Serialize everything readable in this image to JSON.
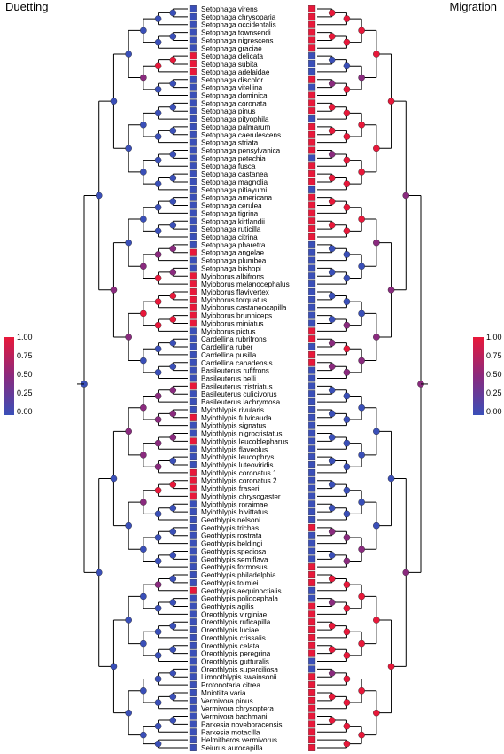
{
  "titles": {
    "left": "Duetting",
    "right": "Migration"
  },
  "legend": {
    "ticks": [
      "1.00",
      "0.75",
      "0.50",
      "0.25",
      "0.00"
    ],
    "colors": {
      "high": "#e8183a",
      "mid": "#8a2a7e",
      "low": "#3a4fb8"
    }
  },
  "species": [
    {
      "name": "Setophaga virens",
      "duet": 0,
      "mig": 1
    },
    {
      "name": "Setophaga chrysoparia",
      "duet": 0,
      "mig": 1
    },
    {
      "name": "Setophaga occidentalis",
      "duet": 0,
      "mig": 1
    },
    {
      "name": "Setophaga townsendi",
      "duet": 0,
      "mig": 1
    },
    {
      "name": "Setophaga nigrescens",
      "duet": 0,
      "mig": 1
    },
    {
      "name": "Setophaga graciae",
      "duet": 0,
      "mig": 1
    },
    {
      "name": "Setophaga delicata",
      "duet": 1,
      "mig": 0
    },
    {
      "name": "Setophaga subita",
      "duet": 1,
      "mig": 0
    },
    {
      "name": "Setophaga adelaidae",
      "duet": 1,
      "mig": 0
    },
    {
      "name": "Setophaga discolor",
      "duet": 0,
      "mig": 1
    },
    {
      "name": "Setophaga vitellina",
      "duet": 0,
      "mig": 0
    },
    {
      "name": "Setophaga dominica",
      "duet": 0,
      "mig": 1
    },
    {
      "name": "Setophaga coronata",
      "duet": 0,
      "mig": 1
    },
    {
      "name": "Setophaga pinus",
      "duet": 0,
      "mig": 1
    },
    {
      "name": "Setophaga pityophila",
      "duet": 0,
      "mig": 0
    },
    {
      "name": "Setophaga palmarum",
      "duet": 0,
      "mig": 1
    },
    {
      "name": "Setophaga caerulescens",
      "duet": 0,
      "mig": 1
    },
    {
      "name": "Setophaga striata",
      "duet": 0,
      "mig": 1
    },
    {
      "name": "Setophaga pensylvanica",
      "duet": 0,
      "mig": 1
    },
    {
      "name": "Setophaga petechia",
      "duet": 0,
      "mig": 0
    },
    {
      "name": "Setophaga fusca",
      "duet": 0,
      "mig": 1
    },
    {
      "name": "Setophaga castanea",
      "duet": 0,
      "mig": 1
    },
    {
      "name": "Setophaga magnolia",
      "duet": 0,
      "mig": 1
    },
    {
      "name": "Setophaga pitiayumi",
      "duet": 0,
      "mig": 0
    },
    {
      "name": "Setophaga americana",
      "duet": 0,
      "mig": 1
    },
    {
      "name": "Setophaga cerulea",
      "duet": 0,
      "mig": 1
    },
    {
      "name": "Setophaga tigrina",
      "duet": 0,
      "mig": 1
    },
    {
      "name": "Setophaga kirtlandii",
      "duet": 0,
      "mig": 1
    },
    {
      "name": "Setophaga ruticilla",
      "duet": 0,
      "mig": 1
    },
    {
      "name": "Setophaga citrina",
      "duet": 0,
      "mig": 1
    },
    {
      "name": "Setophaga pharetra",
      "duet": 0,
      "mig": 0
    },
    {
      "name": "Setophaga angelae",
      "duet": 1,
      "mig": 0
    },
    {
      "name": "Setophaga plumbea",
      "duet": 0,
      "mig": 0
    },
    {
      "name": "Setophaga bishopi",
      "duet": 0,
      "mig": 0
    },
    {
      "name": "Myioborus albifrons",
      "duet": 1,
      "mig": 0
    },
    {
      "name": "Myioborus melanocephalus",
      "duet": 1,
      "mig": 0
    },
    {
      "name": "Myioborus flavivertex",
      "duet": 1,
      "mig": 0
    },
    {
      "name": "Myioborus torquatus",
      "duet": 1,
      "mig": 0
    },
    {
      "name": "Myioborus castaneocapilla",
      "duet": 1,
      "mig": 0
    },
    {
      "name": "Myioborus brunniceps",
      "duet": 1,
      "mig": 0
    },
    {
      "name": "Myioborus miniatus",
      "duet": 1,
      "mig": 0
    },
    {
      "name": "Myioborus pictus",
      "duet": 0,
      "mig": 1
    },
    {
      "name": "Cardellina rubrifrons",
      "duet": 0,
      "mig": 1
    },
    {
      "name": "Cardellina ruber",
      "duet": 0,
      "mig": 0
    },
    {
      "name": "Cardellina pusilla",
      "duet": 0,
      "mig": 1
    },
    {
      "name": "Cardellina canadensis",
      "duet": 0,
      "mig": 1
    },
    {
      "name": "Basileuterus rufifrons",
      "duet": 0,
      "mig": 0
    },
    {
      "name": "Basileuterus belli",
      "duet": 0,
      "mig": 0
    },
    {
      "name": "Basileuterus tristriatus",
      "duet": 1,
      "mig": 0
    },
    {
      "name": "Basileuterus culicivorus",
      "duet": 0,
      "mig": 0
    },
    {
      "name": "Basileuterus lachrymosa",
      "duet": 0,
      "mig": 0
    },
    {
      "name": "Myiothlypis rivularis",
      "duet": 0,
      "mig": 0
    },
    {
      "name": "Myiothlypis fulvicauda",
      "duet": 1,
      "mig": 0
    },
    {
      "name": "Myiothlypis signatus",
      "duet": 0,
      "mig": 0
    },
    {
      "name": "Myiothlypis nigrocristatus",
      "duet": 0,
      "mig": 0
    },
    {
      "name": "Myiothlypis leucoblepharus",
      "duet": 1,
      "mig": 0
    },
    {
      "name": "Myiothlypis flaveolus",
      "duet": 0,
      "mig": 0
    },
    {
      "name": "Myiothlypis leucophrys",
      "duet": 0,
      "mig": 0
    },
    {
      "name": "Myiothlypis luteoviridis",
      "duet": 0,
      "mig": 0
    },
    {
      "name": "Myiothlypis coronatus 1",
      "duet": 1,
      "mig": 0
    },
    {
      "name": "Myiothlypis coronatus 2",
      "duet": 1,
      "mig": 0
    },
    {
      "name": "Myiothlypis fraseri",
      "duet": 1,
      "mig": 0
    },
    {
      "name": "Myiothlypis chrysogaster",
      "duet": 1,
      "mig": 0
    },
    {
      "name": "Myiothlypis roraimae",
      "duet": 0,
      "mig": 0
    },
    {
      "name": "Myiothlypis bivittatus",
      "duet": 0,
      "mig": 0
    },
    {
      "name": "Geothlypis nelsoni",
      "duet": 0,
      "mig": 0
    },
    {
      "name": "Geothlypis trichas",
      "duet": 0,
      "mig": 1
    },
    {
      "name": "Geothlypis rostrata",
      "duet": 0,
      "mig": 0
    },
    {
      "name": "Geothlypis beldingi",
      "duet": 0,
      "mig": 0
    },
    {
      "name": "Geothlypis speciosa",
      "duet": 0,
      "mig": 0
    },
    {
      "name": "Geothlypis semiflava",
      "duet": 0,
      "mig": 0
    },
    {
      "name": "Geothlypis formosus",
      "duet": 0,
      "mig": 1
    },
    {
      "name": "Geothlypis philadelphia",
      "duet": 0,
      "mig": 1
    },
    {
      "name": "Geothlypis tolmiei",
      "duet": 0,
      "mig": 1
    },
    {
      "name": "Geothlypis aequinoctialis",
      "duet": 1,
      "mig": 0
    },
    {
      "name": "Geothlypis poliocephala",
      "duet": 0,
      "mig": 0
    },
    {
      "name": "Geothlypis agilis",
      "duet": 0,
      "mig": 1
    },
    {
      "name": "Oreothlypis virginiae",
      "duet": 0,
      "mig": 1
    },
    {
      "name": "Oreothlypis ruficapilla",
      "duet": 0,
      "mig": 1
    },
    {
      "name": "Oreothlypis luciae",
      "duet": 0,
      "mig": 1
    },
    {
      "name": "Oreothlypis crissalis",
      "duet": 0,
      "mig": 1
    },
    {
      "name": "Oreothlypis celata",
      "duet": 0,
      "mig": 1
    },
    {
      "name": "Oreothlypis peregrina",
      "duet": 0,
      "mig": 1
    },
    {
      "name": "Oreothlypis gutturalis",
      "duet": 0,
      "mig": 0
    },
    {
      "name": "Oreothlypis superciliosa",
      "duet": 0,
      "mig": 0
    },
    {
      "name": "Limnothlypis swainsonii",
      "duet": 0,
      "mig": 1
    },
    {
      "name": "Protonotaria citrea",
      "duet": 0,
      "mig": 1
    },
    {
      "name": "Mniotilta varia",
      "duet": 0,
      "mig": 1
    },
    {
      "name": "Vermivora pinus",
      "duet": 0,
      "mig": 1
    },
    {
      "name": "Vermivora chrysoptera",
      "duet": 0,
      "mig": 1
    },
    {
      "name": "Vermivora bachmanii",
      "duet": 0,
      "mig": 1
    },
    {
      "name": "Parkesia noveboracensis",
      "duet": 0,
      "mig": 1
    },
    {
      "name": "Parkesia motacilla",
      "duet": 0,
      "mig": 1
    },
    {
      "name": "Helmitheros vermivorus",
      "duet": 0,
      "mig": 1
    },
    {
      "name": "Seiurus aurocapilla",
      "duet": 0,
      "mig": 1
    }
  ]
}
